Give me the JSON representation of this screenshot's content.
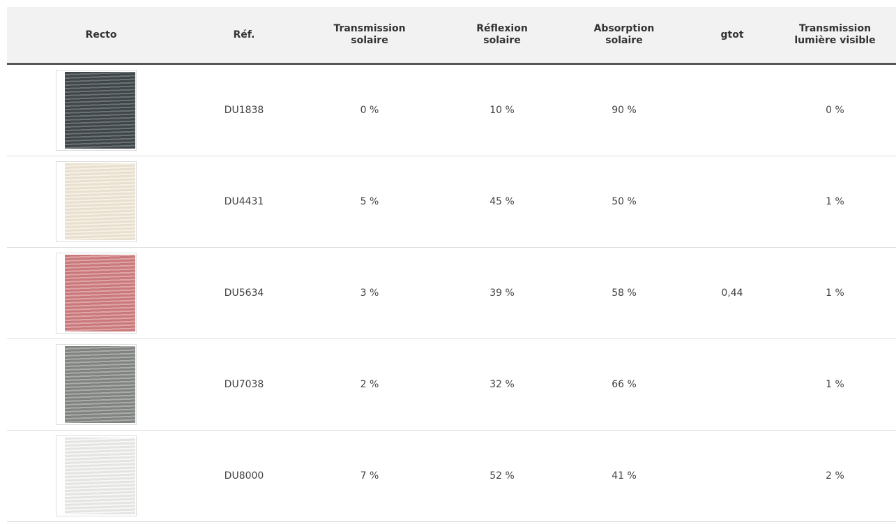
{
  "table": {
    "header": [
      "Recto",
      "Réf.",
      "Transmission solaire",
      "Réflexion solaire",
      "Absorption solaire",
      "gtot",
      "Transmission lumière visible"
    ],
    "rows": [
      {
        "ref": "DU1838",
        "transmission": "0 %",
        "reflexion": "10 %",
        "absorption": "90 %",
        "lumiere": "0 %"
      },
      {
        "ref": "DU4431",
        "transmission": "5 %",
        "reflexion": "45 %",
        "absorption": "50 %",
        "lumiere": "1 %"
      },
      {
        "ref": "DU5634",
        "transmission": "3 %",
        "reflexion": "39 %",
        "absorption": "58 %",
        "gtot": "0,44",
        "lumiere": "1 %"
      },
      {
        "ref": "DU7038",
        "transmission": "2 %",
        "reflexion": "32 %",
        "absorption": "66 %",
        "lumiere": "1 %"
      },
      {
        "ref": "DU8000",
        "transmission": "7 %",
        "reflexion": "52 %",
        "absorption": "41 %",
        "lumiere": "2 %"
      }
    ]
  }
}
